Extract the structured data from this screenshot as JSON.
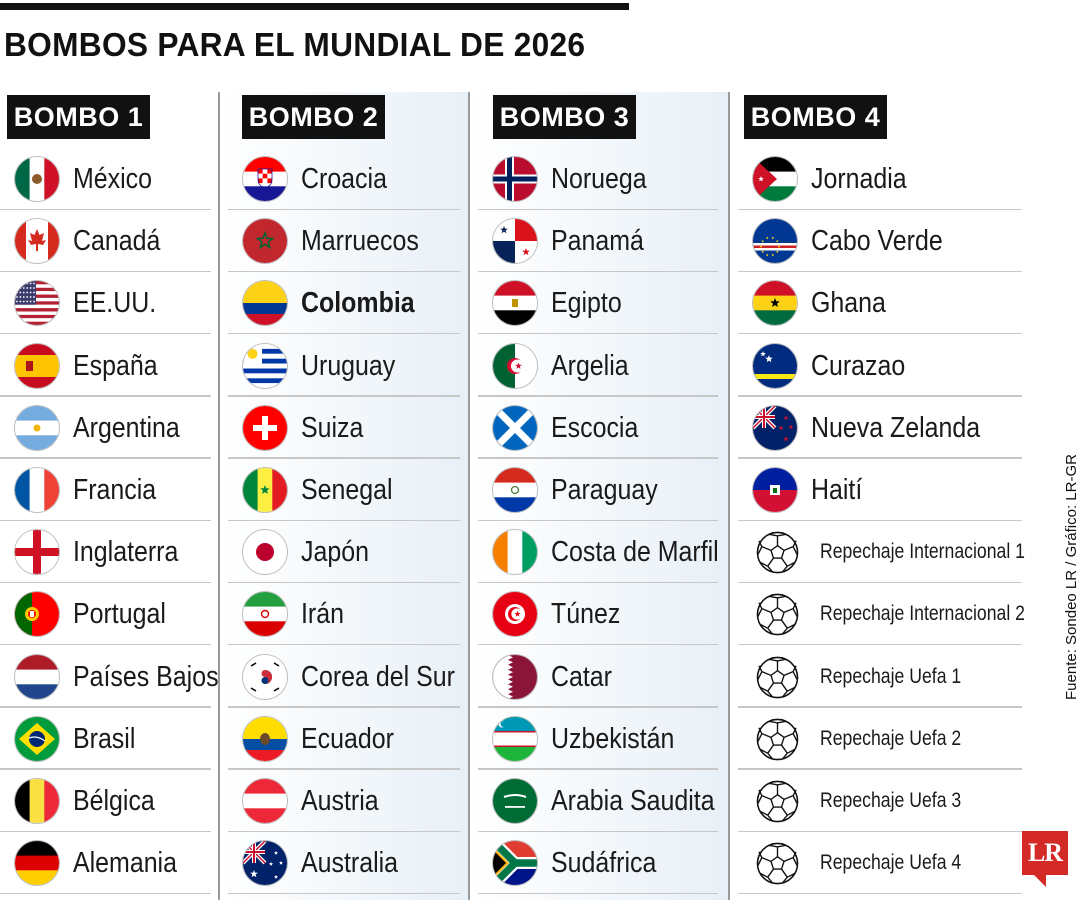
{
  "header": {
    "title": "BOMBOS PARA EL MUNDIAL DE 2026"
  },
  "pots": [
    {
      "label": "BOMBO 1",
      "teams": [
        {
          "name": "México",
          "icon": "mexico-flag-icon"
        },
        {
          "name": "Canadá",
          "icon": "canada-flag-icon"
        },
        {
          "name": "EE.UU.",
          "icon": "usa-flag-icon"
        },
        {
          "name": "España",
          "icon": "spain-flag-icon"
        },
        {
          "name": "Argentina",
          "icon": "argentina-flag-icon"
        },
        {
          "name": "Francia",
          "icon": "france-flag-icon"
        },
        {
          "name": "Inglaterra",
          "icon": "england-flag-icon"
        },
        {
          "name": "Portugal",
          "icon": "portugal-flag-icon"
        },
        {
          "name": "Países Bajos",
          "icon": "netherlands-flag-icon"
        },
        {
          "name": "Brasil",
          "icon": "brazil-flag-icon"
        },
        {
          "name": "Bélgica",
          "icon": "belgium-flag-icon"
        },
        {
          "name": "Alemania",
          "icon": "germany-flag-icon"
        }
      ]
    },
    {
      "label": "BOMBO 2",
      "teams": [
        {
          "name": "Croacia",
          "icon": "croatia-flag-icon"
        },
        {
          "name": "Marruecos",
          "icon": "morocco-flag-icon"
        },
        {
          "name": "Colombia",
          "icon": "colombia-flag-icon",
          "highlight": true
        },
        {
          "name": "Uruguay",
          "icon": "uruguay-flag-icon"
        },
        {
          "name": "Suiza",
          "icon": "switzerland-flag-icon"
        },
        {
          "name": "Senegal",
          "icon": "senegal-flag-icon"
        },
        {
          "name": "Japón",
          "icon": "japan-flag-icon"
        },
        {
          "name": "Irán",
          "icon": "iran-flag-icon"
        },
        {
          "name": "Corea del Sur",
          "icon": "south-korea-flag-icon"
        },
        {
          "name": "Ecuador",
          "icon": "ecuador-flag-icon"
        },
        {
          "name": "Austria",
          "icon": "austria-flag-icon"
        },
        {
          "name": "Australia",
          "icon": "australia-flag-icon"
        }
      ]
    },
    {
      "label": "BOMBO 3",
      "teams": [
        {
          "name": "Noruega",
          "icon": "norway-flag-icon"
        },
        {
          "name": "Panamá",
          "icon": "panama-flag-icon"
        },
        {
          "name": "Egipto",
          "icon": "egypt-flag-icon"
        },
        {
          "name": "Argelia",
          "icon": "algeria-flag-icon"
        },
        {
          "name": "Escocia",
          "icon": "scotland-flag-icon"
        },
        {
          "name": "Paraguay",
          "icon": "paraguay-flag-icon"
        },
        {
          "name": "Costa de Marfil",
          "icon": "ivory-coast-flag-icon"
        },
        {
          "name": "Túnez",
          "icon": "tunisia-flag-icon"
        },
        {
          "name": "Catar",
          "icon": "qatar-flag-icon"
        },
        {
          "name": "Uzbekistán",
          "icon": "uzbekistan-flag-icon"
        },
        {
          "name": "Arabia Saudita",
          "icon": "saudi-arabia-flag-icon"
        },
        {
          "name": "Sudáfrica",
          "icon": "south-africa-flag-icon"
        }
      ]
    },
    {
      "label": "BOMBO 4",
      "teams": [
        {
          "name": "Jornadia",
          "icon": "jordan-flag-icon"
        },
        {
          "name": "Cabo Verde",
          "icon": "cape-verde-flag-icon"
        },
        {
          "name": "Ghana",
          "icon": "ghana-flag-icon"
        },
        {
          "name": "Curazao",
          "icon": "curacao-flag-icon"
        },
        {
          "name": "Nueva Zelanda",
          "icon": "new-zealand-flag-icon"
        },
        {
          "name": "Haití",
          "icon": "haiti-flag-icon"
        },
        {
          "name": "Repechaje Internacional 1",
          "icon": "soccer-ball-icon",
          "small": true
        },
        {
          "name": "Repechaje Internacional 2",
          "icon": "soccer-ball-icon",
          "small": true
        },
        {
          "name": "Repechaje Uefa 1",
          "icon": "soccer-ball-icon",
          "small": true
        },
        {
          "name": "Repechaje Uefa 2",
          "icon": "soccer-ball-icon",
          "small": true
        },
        {
          "name": "Repechaje Uefa 3",
          "icon": "soccer-ball-icon",
          "small": true
        },
        {
          "name": "Repechaje Uefa 4",
          "icon": "soccer-ball-icon",
          "small": true
        }
      ]
    }
  ],
  "footer": {
    "source": "Fuente: Sondeo LR / Gráfico: LR-GR",
    "logo_text": "LR",
    "logo_color": "#d42a27"
  }
}
